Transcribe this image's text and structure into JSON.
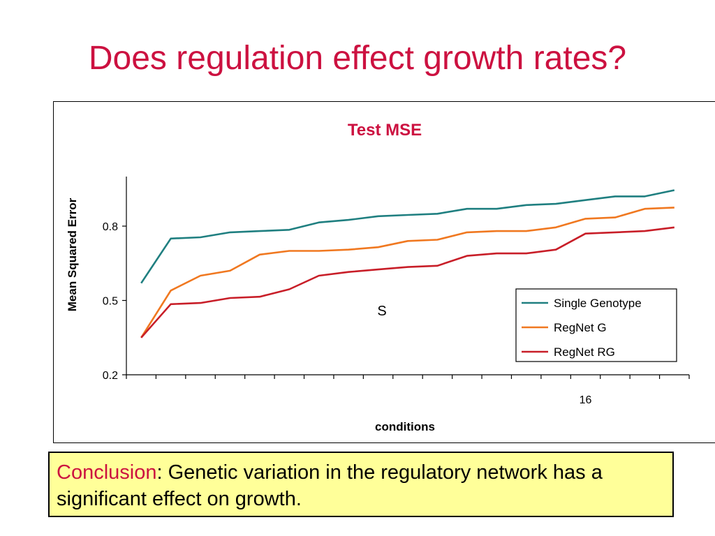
{
  "slide": {
    "title": "Does regulation effect growth rates?"
  },
  "conclusion": {
    "label": "Conclusion",
    "text": ": Genetic variation in the regulatory network has a significant effect on growth."
  },
  "chart_data": {
    "type": "line",
    "title": "Test MSE",
    "xlabel": "conditions",
    "ylabel": "Mean Squared Error",
    "annotation": "S",
    "x": [
      1,
      2,
      3,
      4,
      5,
      6,
      7,
      8,
      9,
      10,
      11,
      12,
      13,
      14,
      15,
      16,
      17,
      18,
      19
    ],
    "xtick_labels": [
      {
        "x": 16,
        "label": "16"
      }
    ],
    "ylim": [
      0.2,
      1.0
    ],
    "yticks": [
      0.2,
      0.5,
      0.8
    ],
    "ytick_labels": [
      "0.2",
      "0.5",
      "0.8"
    ],
    "grid": false,
    "legend_position": "lower-right",
    "series": [
      {
        "name": "Single Genotype",
        "color": "#1f7f80",
        "values": [
          0.57,
          0.75,
          0.755,
          0.775,
          0.78,
          0.785,
          0.815,
          0.825,
          0.84,
          0.845,
          0.85,
          0.87,
          0.87,
          0.885,
          0.89,
          0.905,
          0.92,
          0.92,
          0.945
        ]
      },
      {
        "name": "RegNet G",
        "color": "#f07820",
        "values": [
          0.35,
          0.54,
          0.6,
          0.62,
          0.685,
          0.7,
          0.7,
          0.705,
          0.715,
          0.74,
          0.745,
          0.775,
          0.78,
          0.78,
          0.795,
          0.83,
          0.835,
          0.87,
          0.875
        ]
      },
      {
        "name": "RegNet RG",
        "color": "#c81e28",
        "values": [
          0.35,
          0.485,
          0.49,
          0.51,
          0.515,
          0.545,
          0.6,
          0.615,
          0.625,
          0.635,
          0.64,
          0.68,
          0.69,
          0.69,
          0.705,
          0.77,
          0.775,
          0.78,
          0.795
        ]
      }
    ]
  }
}
